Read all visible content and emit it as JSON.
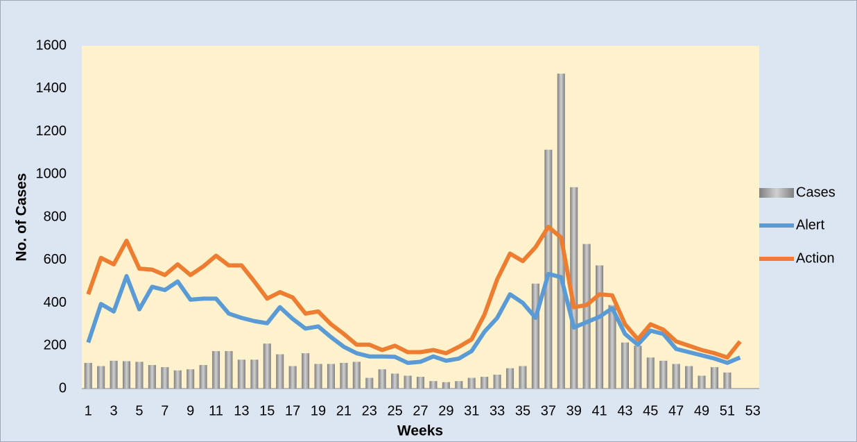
{
  "chart_data": {
    "type": "combo",
    "ylabel": "No. of Cases",
    "xlabel": "Weeks",
    "categories": [
      1,
      null,
      3,
      null,
      5,
      null,
      7,
      null,
      9,
      null,
      11,
      null,
      13,
      null,
      15,
      null,
      17,
      null,
      19,
      null,
      21,
      null,
      23,
      null,
      25,
      null,
      27,
      null,
      29,
      null,
      31,
      null,
      33,
      null,
      35,
      null,
      37,
      null,
      39,
      null,
      41,
      null,
      43,
      null,
      45,
      null,
      47,
      null,
      49,
      null,
      51,
      null,
      53
    ],
    "series": [
      {
        "name": "Cases",
        "type": "bar",
        "color": "#a6a6a6",
        "values": [
          120,
          105,
          130,
          128,
          125,
          110,
          100,
          85,
          90,
          110,
          175,
          175,
          135,
          135,
          210,
          160,
          105,
          165,
          115,
          115,
          120,
          125,
          50,
          90,
          70,
          60,
          55,
          35,
          30,
          35,
          50,
          55,
          65,
          95,
          105,
          490,
          1115,
          1470,
          940,
          675,
          575,
          390,
          215,
          200,
          145,
          130,
          115,
          105,
          60,
          100,
          75,
          null,
          null
        ]
      },
      {
        "name": "Alert",
        "type": "line",
        "color": "#5b9bd5",
        "values": [
          215,
          395,
          360,
          525,
          370,
          475,
          460,
          500,
          415,
          420,
          420,
          350,
          330,
          315,
          305,
          380,
          325,
          280,
          290,
          240,
          195,
          165,
          150,
          150,
          148,
          120,
          125,
          150,
          130,
          140,
          175,
          265,
          330,
          440,
          400,
          330,
          535,
          520,
          285,
          310,
          335,
          375,
          255,
          205,
          270,
          255,
          185,
          170,
          155,
          140,
          120,
          145,
          null
        ]
      },
      {
        "name": "Action",
        "type": "line",
        "color": "#ed7d31",
        "values": [
          440,
          610,
          580,
          690,
          560,
          555,
          530,
          580,
          530,
          570,
          620,
          575,
          575,
          500,
          420,
          450,
          425,
          350,
          360,
          300,
          255,
          205,
          205,
          180,
          200,
          170,
          170,
          180,
          165,
          195,
          230,
          345,
          510,
          630,
          595,
          660,
          755,
          705,
          380,
          390,
          440,
          435,
          300,
          230,
          300,
          275,
          220,
          200,
          180,
          165,
          145,
          220,
          null
        ]
      }
    ],
    "ylim": [
      0,
      1600
    ],
    "yticks": [
      0,
      200,
      400,
      600,
      800,
      1000,
      1200,
      1400,
      1600
    ],
    "legend": "right"
  }
}
